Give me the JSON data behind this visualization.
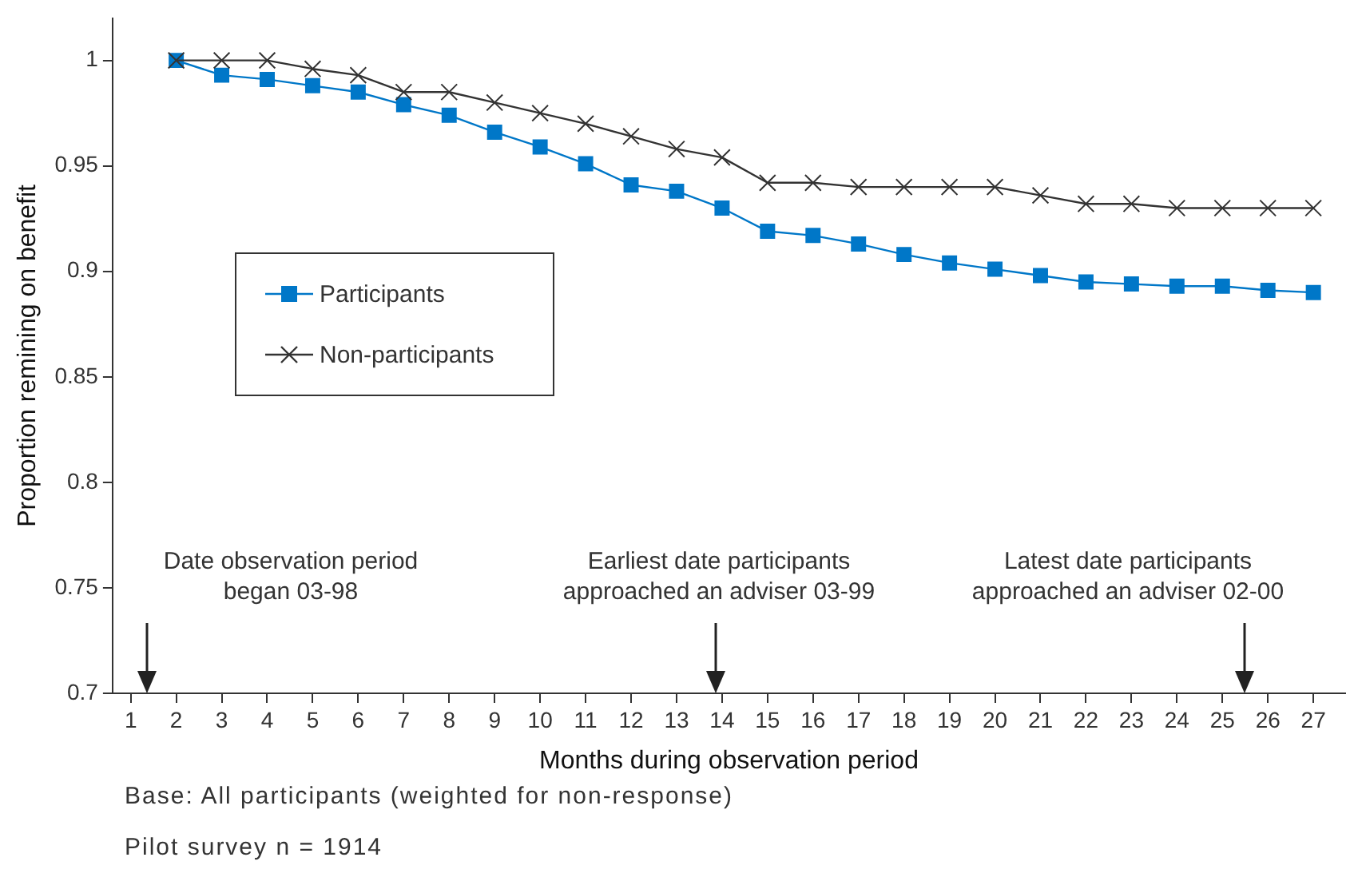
{
  "chart_data": {
    "type": "line",
    "xlabel": "Months during observation period",
    "ylabel": "Proportion remining on benefit",
    "x": [
      2,
      3,
      4,
      5,
      6,
      7,
      8,
      9,
      10,
      11,
      12,
      13,
      14,
      15,
      16,
      17,
      18,
      19,
      20,
      21,
      22,
      23,
      24,
      25,
      26,
      27
    ],
    "xlim": [
      0.6,
      27.7
    ],
    "xticks": [
      1,
      2,
      3,
      4,
      5,
      6,
      7,
      8,
      9,
      10,
      11,
      12,
      13,
      14,
      15,
      16,
      17,
      18,
      19,
      20,
      21,
      22,
      23,
      24,
      25,
      26,
      27
    ],
    "ylim": [
      0.7,
      1.02
    ],
    "yticks": [
      0.7,
      0.75,
      0.8,
      0.85,
      0.9,
      0.95,
      1
    ],
    "series": [
      {
        "name": "Participants",
        "color": "#0077c8",
        "marker": "square",
        "values": [
          1.0,
          0.993,
          0.991,
          0.988,
          0.985,
          0.979,
          0.974,
          0.966,
          0.959,
          0.951,
          0.941,
          0.938,
          0.93,
          0.919,
          0.917,
          0.913,
          0.908,
          0.904,
          0.901,
          0.898,
          0.895,
          0.894,
          0.893,
          0.893,
          0.891,
          0.89
        ]
      },
      {
        "name": "Non-participants",
        "color": "#333333",
        "marker": "cross",
        "values": [
          1.0,
          1.0,
          1.0,
          0.996,
          0.993,
          0.985,
          0.985,
          0.98,
          0.975,
          0.97,
          0.964,
          0.958,
          0.954,
          0.942,
          0.942,
          0.94,
          0.94,
          0.94,
          0.94,
          0.936,
          0.932,
          0.932,
          0.93,
          0.93,
          0.93,
          0.93
        ]
      }
    ],
    "legend": "left",
    "grid": false,
    "line_style": "solid",
    "annotations": [
      "Date observation period\nbegan 03-98",
      "Earliest date participants\napproached an adviser 03-99",
      "Latest date participants\napproached an adviser 02-00",
      "Base: All participants (weighted for non-response)",
      "Pilot survey n = 1914"
    ]
  }
}
